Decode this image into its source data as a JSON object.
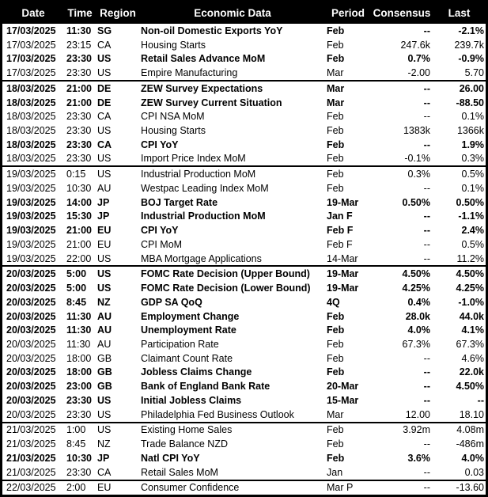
{
  "colors": {
    "header_bg": "#000000",
    "header_text": "#ffffff",
    "body_text": "#000000",
    "border": "#000000"
  },
  "chart_data": {
    "type": "table",
    "columns": [
      {
        "key": "date",
        "label": "Date"
      },
      {
        "key": "time",
        "label": "Time"
      },
      {
        "key": "region",
        "label": "Region"
      },
      {
        "key": "event",
        "label": "Economic Data"
      },
      {
        "key": "period",
        "label": "Period"
      },
      {
        "key": "consensus",
        "label": "Consensus"
      },
      {
        "key": "last",
        "label": "Last"
      }
    ],
    "rows": [
      {
        "date": "17/03/2025",
        "time": "11:30",
        "region": "SG",
        "event": "Non-oil Domestic Exports YoY",
        "period": "Feb",
        "consensus": "--",
        "last": "-2.1%",
        "bold": true,
        "group_start": false
      },
      {
        "date": "17/03/2025",
        "time": "23:15",
        "region": "CA",
        "event": "Housing Starts",
        "period": "Feb",
        "consensus": "247.6k",
        "last": "239.7k",
        "bold": false,
        "group_start": false
      },
      {
        "date": "17/03/2025",
        "time": "23:30",
        "region": "US",
        "event": "Retail Sales Advance MoM",
        "period": "Feb",
        "consensus": "0.7%",
        "last": "-0.9%",
        "bold": true,
        "group_start": false
      },
      {
        "date": "17/03/2025",
        "time": "23:30",
        "region": "US",
        "event": "Empire Manufacturing",
        "period": "Mar",
        "consensus": "-2.00",
        "last": "5.70",
        "bold": false,
        "group_start": false
      },
      {
        "date": "18/03/2025",
        "time": "21:00",
        "region": "DE",
        "event": "ZEW Survey Expectations",
        "period": "Mar",
        "consensus": "--",
        "last": "26.00",
        "bold": true,
        "group_start": true
      },
      {
        "date": "18/03/2025",
        "time": "21:00",
        "region": "DE",
        "event": "ZEW Survey Current Situation",
        "period": "Mar",
        "consensus": "--",
        "last": "-88.50",
        "bold": true,
        "group_start": false
      },
      {
        "date": "18/03/2025",
        "time": "23:30",
        "region": "CA",
        "event": "CPI NSA MoM",
        "period": "Feb",
        "consensus": "--",
        "last": "0.1%",
        "bold": false,
        "group_start": false
      },
      {
        "date": "18/03/2025",
        "time": "23:30",
        "region": "US",
        "event": "Housing Starts",
        "period": "Feb",
        "consensus": "1383k",
        "last": "1366k",
        "bold": false,
        "group_start": false
      },
      {
        "date": "18/03/2025",
        "time": "23:30",
        "region": "CA",
        "event": "CPI YoY",
        "period": "Feb",
        "consensus": "--",
        "last": "1.9%",
        "bold": true,
        "group_start": false
      },
      {
        "date": "18/03/2025",
        "time": "23:30",
        "region": "US",
        "event": "Import Price Index MoM",
        "period": "Feb",
        "consensus": "-0.1%",
        "last": "0.3%",
        "bold": false,
        "group_start": false
      },
      {
        "date": "19/03/2025",
        "time": "0:15",
        "region": "US",
        "event": "Industrial Production MoM",
        "period": "Feb",
        "consensus": "0.3%",
        "last": "0.5%",
        "bold": false,
        "group_start": true
      },
      {
        "date": "19/03/2025",
        "time": "10:30",
        "region": "AU",
        "event": "Westpac Leading Index MoM",
        "period": "Feb",
        "consensus": "--",
        "last": "0.1%",
        "bold": false,
        "group_start": false
      },
      {
        "date": "19/03/2025",
        "time": "14:00",
        "region": "JP",
        "event": "BOJ Target Rate",
        "period": "19-Mar",
        "consensus": "0.50%",
        "last": "0.50%",
        "bold": true,
        "group_start": false
      },
      {
        "date": "19/03/2025",
        "time": "15:30",
        "region": "JP",
        "event": "Industrial Production MoM",
        "period": "Jan F",
        "consensus": "--",
        "last": "-1.1%",
        "bold": true,
        "group_start": false
      },
      {
        "date": "19/03/2025",
        "time": "21:00",
        "region": "EU",
        "event": "CPI YoY",
        "period": "Feb F",
        "consensus": "--",
        "last": "2.4%",
        "bold": true,
        "group_start": false
      },
      {
        "date": "19/03/2025",
        "time": "21:00",
        "region": "EU",
        "event": "CPI MoM",
        "period": "Feb F",
        "consensus": "--",
        "last": "0.5%",
        "bold": false,
        "group_start": false
      },
      {
        "date": "19/03/2025",
        "time": "22:00",
        "region": "US",
        "event": "MBA Mortgage Applications",
        "period": "14-Mar",
        "consensus": "--",
        "last": "11.2%",
        "bold": false,
        "group_start": false
      },
      {
        "date": "20/03/2025",
        "time": "5:00",
        "region": "US",
        "event": "FOMC Rate Decision (Upper Bound)",
        "period": "19-Mar",
        "consensus": "4.50%",
        "last": "4.50%",
        "bold": true,
        "group_start": true
      },
      {
        "date": "20/03/2025",
        "time": "5:00",
        "region": "US",
        "event": "FOMC Rate Decision (Lower Bound)",
        "period": "19-Mar",
        "consensus": "4.25%",
        "last": "4.25%",
        "bold": true,
        "group_start": false
      },
      {
        "date": "20/03/2025",
        "time": "8:45",
        "region": "NZ",
        "event": "GDP SA QoQ",
        "period": "4Q",
        "consensus": "0.4%",
        "last": "-1.0%",
        "bold": true,
        "group_start": false
      },
      {
        "date": "20/03/2025",
        "time": "11:30",
        "region": "AU",
        "event": "Employment Change",
        "period": "Feb",
        "consensus": "28.0k",
        "last": "44.0k",
        "bold": true,
        "group_start": false
      },
      {
        "date": "20/03/2025",
        "time": "11:30",
        "region": "AU",
        "event": "Unemployment Rate",
        "period": "Feb",
        "consensus": "4.0%",
        "last": "4.1%",
        "bold": true,
        "group_start": false
      },
      {
        "date": "20/03/2025",
        "time": "11:30",
        "region": "AU",
        "event": "Participation Rate",
        "period": "Feb",
        "consensus": "67.3%",
        "last": "67.3%",
        "bold": false,
        "group_start": false
      },
      {
        "date": "20/03/2025",
        "time": "18:00",
        "region": "GB",
        "event": "Claimant Count Rate",
        "period": "Feb",
        "consensus": "--",
        "last": "4.6%",
        "bold": false,
        "group_start": false
      },
      {
        "date": "20/03/2025",
        "time": "18:00",
        "region": "GB",
        "event": "Jobless Claims Change",
        "period": "Feb",
        "consensus": "--",
        "last": "22.0k",
        "bold": true,
        "group_start": false
      },
      {
        "date": "20/03/2025",
        "time": "23:00",
        "region": "GB",
        "event": "Bank of England Bank Rate",
        "period": "20-Mar",
        "consensus": "--",
        "last": "4.50%",
        "bold": true,
        "group_start": false
      },
      {
        "date": "20/03/2025",
        "time": "23:30",
        "region": "US",
        "event": "Initial Jobless Claims",
        "period": "15-Mar",
        "consensus": "--",
        "last": "--",
        "bold": true,
        "group_start": false
      },
      {
        "date": "20/03/2025",
        "time": "23:30",
        "region": "US",
        "event": "Philadelphia Fed Business Outlook",
        "period": "Mar",
        "consensus": "12.00",
        "last": "18.10",
        "bold": false,
        "group_start": false
      },
      {
        "date": "21/03/2025",
        "time": "1:00",
        "region": "US",
        "event": "Existing Home Sales",
        "period": "Feb",
        "consensus": "3.92m",
        "last": "4.08m",
        "bold": false,
        "group_start": true
      },
      {
        "date": "21/03/2025",
        "time": "8:45",
        "region": "NZ",
        "event": "Trade Balance NZD",
        "period": "Feb",
        "consensus": "--",
        "last": "-486m",
        "bold": false,
        "group_start": false
      },
      {
        "date": "21/03/2025",
        "time": "10:30",
        "region": "JP",
        "event": "Natl CPI YoY",
        "period": "Feb",
        "consensus": "3.6%",
        "last": "4.0%",
        "bold": true,
        "group_start": false
      },
      {
        "date": "21/03/2025",
        "time": "23:30",
        "region": "CA",
        "event": "Retail Sales MoM",
        "period": "Jan",
        "consensus": "--",
        "last": "0.03",
        "bold": false,
        "group_start": false
      },
      {
        "date": "22/03/2025",
        "time": "2:00",
        "region": "EU",
        "event": "Consumer Confidence",
        "period": "Mar P",
        "consensus": "--",
        "last": "-13.60",
        "bold": false,
        "group_start": true
      }
    ]
  }
}
